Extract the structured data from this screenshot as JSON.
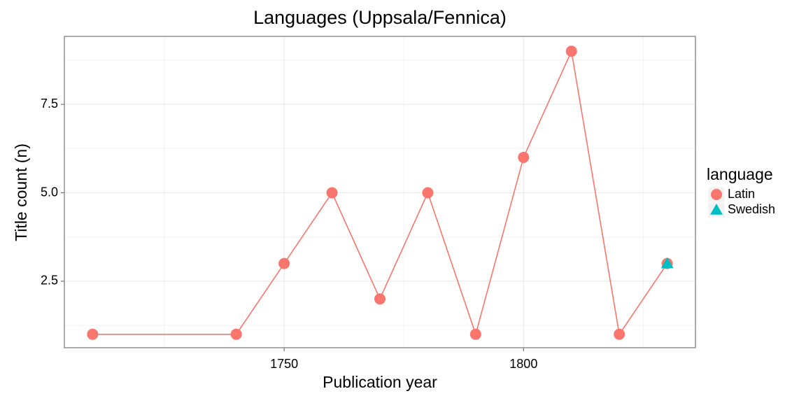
{
  "chart_data": {
    "type": "line",
    "title": "Languages (Uppsala/Fennica)",
    "x_label": "Publication year",
    "y_label": "Title count (n)",
    "legend_title": "language",
    "legend_position": "right",
    "grid": true,
    "xlim": [
      1704.1,
      1835.9
    ],
    "ylim": [
      0.62,
      9.42
    ],
    "xticks": [
      1750,
      1800
    ],
    "yticks": [
      2.5,
      {
        "value": 5,
        "label": "5.0"
      },
      7.5
    ],
    "series": [
      {
        "name": "Latin",
        "color": "#F8766D",
        "marker": "circle",
        "x": [
          1710,
          1740,
          1750,
          1760,
          1770,
          1780,
          1790,
          1800,
          1810,
          1820,
          1830
        ],
        "values": [
          1,
          1,
          3,
          5,
          2,
          5,
          1,
          6,
          9,
          1,
          3
        ]
      },
      {
        "name": "Swedish",
        "color": "#00BFC4",
        "marker": "triangle",
        "x": [
          1830
        ],
        "values": [
          3
        ]
      }
    ]
  }
}
